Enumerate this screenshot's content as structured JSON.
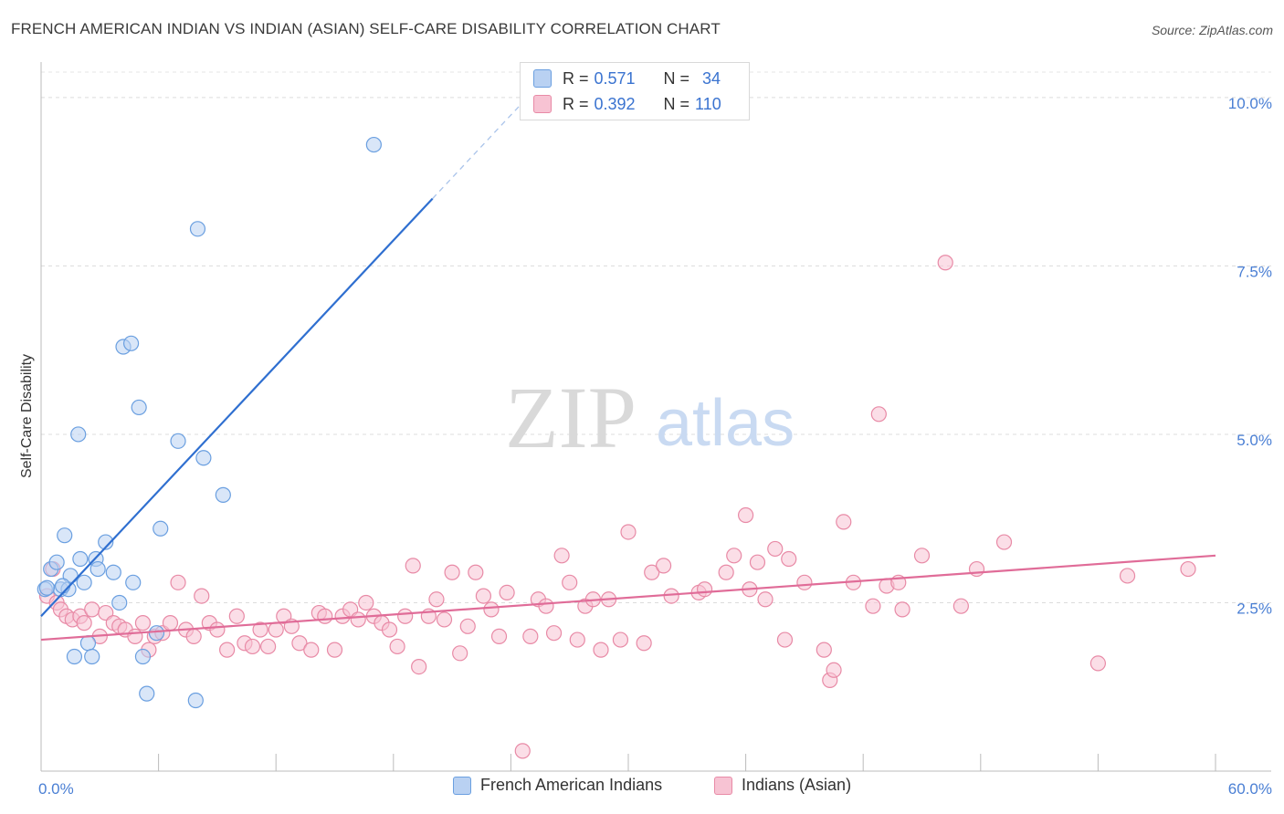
{
  "title": "FRENCH AMERICAN INDIAN VS INDIAN (ASIAN) SELF-CARE DISABILITY CORRELATION CHART",
  "source": "Source: ZipAtlas.com",
  "watermark": {
    "part1": "ZIP",
    "part2": "atlas"
  },
  "legend": {
    "rows": [
      {
        "r_key": "R =",
        "r_value": "0.571",
        "n_key": "N =",
        "n_value": "34"
      },
      {
        "r_key": "R =",
        "r_value": "0.392",
        "n_key": "N =",
        "n_value": "110"
      }
    ]
  },
  "chart_data": {
    "type": "scatter",
    "title": "FRENCH AMERICAN INDIAN VS INDIAN (ASIAN) SELF-CARE DISABILITY CORRELATION CHART",
    "xlabel": "",
    "ylabel": "Self-Care Disability",
    "xlim": [
      0,
      60
    ],
    "ylim": [
      0,
      10.5
    ],
    "x_tick_labels": [
      "0.0%",
      "60.0%"
    ],
    "y_ticks": [
      2.5,
      5.0,
      7.5,
      10.0
    ],
    "y_tick_labels": [
      "2.5%",
      "5.0%",
      "7.5%",
      "10.0%"
    ],
    "grid": true,
    "legend_position": "bottom",
    "colors": {
      "blue_fill": "#b9d1f2",
      "blue_edge": "#6a9fe0",
      "blue_line": "#2f6fd0",
      "pink_fill": "#f7c3d3",
      "pink_edge": "#e88aa6",
      "pink_line": "#e06c98"
    },
    "series": [
      {
        "name": "French American Indians",
        "color": "blue",
        "trend": {
          "x0": 0.0,
          "y0": 2.3,
          "x1": 20.0,
          "y1": 8.5,
          "dash_to_x": 25.0
        },
        "points": [
          [
            0.2,
            2.7
          ],
          [
            0.5,
            3.0
          ],
          [
            0.8,
            3.1
          ],
          [
            1.0,
            2.7
          ],
          [
            1.2,
            3.5
          ],
          [
            1.4,
            2.7
          ],
          [
            1.5,
            2.9
          ],
          [
            1.7,
            1.7
          ],
          [
            1.9,
            5.0
          ],
          [
            2.0,
            3.15
          ],
          [
            2.2,
            2.8
          ],
          [
            2.4,
            1.9
          ],
          [
            2.6,
            1.7
          ],
          [
            2.8,
            3.15
          ],
          [
            2.9,
            3.0
          ],
          [
            3.3,
            3.4
          ],
          [
            3.7,
            2.95
          ],
          [
            4.0,
            2.5
          ],
          [
            4.2,
            6.3
          ],
          [
            4.6,
            6.35
          ],
          [
            4.7,
            2.8
          ],
          [
            5.0,
            5.4
          ],
          [
            5.2,
            1.7
          ],
          [
            5.4,
            1.15
          ],
          [
            5.9,
            2.05
          ],
          [
            6.1,
            3.6
          ],
          [
            7.0,
            4.9
          ],
          [
            7.9,
            1.05
          ],
          [
            8.0,
            8.05
          ],
          [
            8.3,
            4.65
          ],
          [
            9.3,
            4.1
          ],
          [
            17.0,
            9.3
          ],
          [
            0.3,
            2.72
          ],
          [
            1.1,
            2.75
          ]
        ]
      },
      {
        "name": "Indians (Asian)",
        "color": "pink",
        "trend": {
          "x0": 0.0,
          "y0": 1.95,
          "x1": 60.0,
          "y1": 3.2
        },
        "points": [
          [
            0.3,
            2.6
          ],
          [
            0.6,
            3.0
          ],
          [
            0.8,
            2.5
          ],
          [
            1.0,
            2.4
          ],
          [
            1.3,
            2.3
          ],
          [
            1.6,
            2.25
          ],
          [
            2.0,
            2.3
          ],
          [
            2.2,
            2.2
          ],
          [
            2.6,
            2.4
          ],
          [
            3.0,
            2.0
          ],
          [
            3.3,
            2.35
          ],
          [
            3.7,
            2.2
          ],
          [
            4.0,
            2.15
          ],
          [
            4.3,
            2.1
          ],
          [
            4.8,
            2.0
          ],
          [
            5.2,
            2.2
          ],
          [
            5.5,
            1.8
          ],
          [
            5.8,
            2.0
          ],
          [
            6.2,
            2.05
          ],
          [
            6.6,
            2.2
          ],
          [
            7.0,
            2.8
          ],
          [
            7.4,
            2.1
          ],
          [
            7.8,
            2.0
          ],
          [
            8.2,
            2.6
          ],
          [
            8.6,
            2.2
          ],
          [
            9.0,
            2.1
          ],
          [
            9.5,
            1.8
          ],
          [
            10.0,
            2.3
          ],
          [
            10.4,
            1.9
          ],
          [
            10.8,
            1.85
          ],
          [
            11.2,
            2.1
          ],
          [
            11.6,
            1.85
          ],
          [
            12.0,
            2.1
          ],
          [
            12.4,
            2.3
          ],
          [
            12.8,
            2.15
          ],
          [
            13.2,
            1.9
          ],
          [
            13.8,
            1.8
          ],
          [
            14.2,
            2.35
          ],
          [
            14.5,
            2.3
          ],
          [
            15.0,
            1.8
          ],
          [
            15.4,
            2.3
          ],
          [
            15.8,
            2.4
          ],
          [
            16.2,
            2.25
          ],
          [
            16.6,
            2.5
          ],
          [
            17.0,
            2.3
          ],
          [
            17.4,
            2.2
          ],
          [
            17.8,
            2.1
          ],
          [
            18.2,
            1.85
          ],
          [
            18.6,
            2.3
          ],
          [
            19.0,
            3.05
          ],
          [
            19.3,
            1.55
          ],
          [
            19.8,
            2.3
          ],
          [
            20.2,
            2.55
          ],
          [
            20.6,
            2.25
          ],
          [
            21.0,
            2.95
          ],
          [
            21.4,
            1.75
          ],
          [
            21.8,
            2.15
          ],
          [
            22.2,
            2.95
          ],
          [
            22.6,
            2.6
          ],
          [
            23.0,
            2.4
          ],
          [
            23.4,
            2.0
          ],
          [
            23.8,
            2.65
          ],
          [
            24.6,
            0.3
          ],
          [
            25.0,
            2.0
          ],
          [
            25.4,
            2.55
          ],
          [
            25.8,
            2.45
          ],
          [
            26.2,
            2.05
          ],
          [
            26.6,
            3.2
          ],
          [
            27.0,
            2.8
          ],
          [
            27.4,
            1.95
          ],
          [
            27.8,
            2.45
          ],
          [
            28.2,
            2.55
          ],
          [
            28.6,
            1.8
          ],
          [
            29.0,
            2.55
          ],
          [
            29.6,
            1.95
          ],
          [
            30.0,
            3.55
          ],
          [
            30.8,
            1.9
          ],
          [
            31.2,
            2.95
          ],
          [
            31.8,
            3.05
          ],
          [
            32.2,
            2.6
          ],
          [
            33.6,
            2.65
          ],
          [
            33.9,
            2.7
          ],
          [
            35.0,
            2.95
          ],
          [
            35.4,
            3.2
          ],
          [
            36.0,
            3.8
          ],
          [
            36.2,
            2.7
          ],
          [
            36.6,
            3.1
          ],
          [
            37.0,
            2.55
          ],
          [
            37.5,
            3.3
          ],
          [
            38.0,
            1.95
          ],
          [
            38.2,
            3.15
          ],
          [
            39.0,
            2.8
          ],
          [
            40.0,
            1.8
          ],
          [
            40.3,
            1.35
          ],
          [
            40.5,
            1.5
          ],
          [
            41.0,
            3.7
          ],
          [
            42.5,
            2.45
          ],
          [
            42.8,
            5.3
          ],
          [
            43.2,
            2.75
          ],
          [
            43.8,
            2.8
          ],
          [
            45.0,
            3.2
          ],
          [
            46.2,
            7.55
          ],
          [
            47.0,
            2.45
          ],
          [
            47.8,
            3.0
          ],
          [
            49.2,
            3.4
          ],
          [
            54.0,
            1.6
          ],
          [
            55.5,
            2.9
          ],
          [
            58.6,
            3.0
          ],
          [
            41.5,
            2.8
          ],
          [
            44.0,
            2.4
          ]
        ]
      }
    ]
  },
  "bottom_legend": [
    {
      "label": "French American Indians"
    },
    {
      "label": "Indians (Asian)"
    }
  ]
}
